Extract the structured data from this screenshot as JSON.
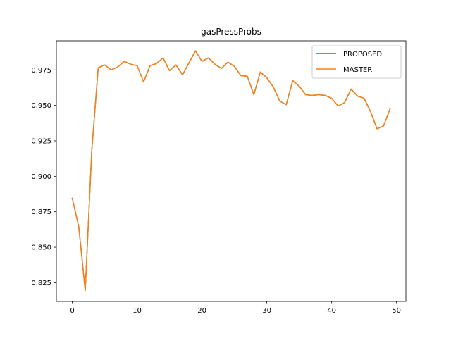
{
  "chart_data": {
    "type": "line",
    "title": "gasPressProbs",
    "xlabel": "",
    "ylabel": "",
    "xlim": [
      -2.45,
      51.45
    ],
    "ylim": [
      0.8118,
      0.9955
    ],
    "xticks": [
      0,
      10,
      20,
      30,
      40,
      50
    ],
    "yticks": [
      0.825,
      0.85,
      0.875,
      0.9,
      0.925,
      0.95,
      0.975
    ],
    "ytick_labels": [
      "0.825",
      "0.850",
      "0.875",
      "0.900",
      "0.925",
      "0.950",
      "0.975"
    ],
    "grid": false,
    "legend_position": "top-right",
    "x": [
      0,
      1,
      2,
      3,
      4,
      5,
      6,
      7,
      8,
      9,
      10,
      11,
      12,
      13,
      14,
      15,
      16,
      17,
      18,
      19,
      20,
      21,
      22,
      23,
      24,
      25,
      26,
      27,
      28,
      29,
      30,
      31,
      32,
      33,
      34,
      35,
      36,
      37,
      38,
      39,
      40,
      41,
      42,
      43,
      44,
      45,
      46,
      47,
      48,
      49
    ],
    "series": [
      {
        "name": "PROPOSED",
        "color": "#1f77b4",
        "values": [
          0.8845,
          0.8645,
          0.8195,
          0.9175,
          0.9765,
          0.9785,
          0.975,
          0.977,
          0.981,
          0.979,
          0.978,
          0.9665,
          0.978,
          0.9795,
          0.9835,
          0.9745,
          0.9785,
          0.9715,
          0.98,
          0.9885,
          0.981,
          0.9835,
          0.979,
          0.976,
          0.9805,
          0.9775,
          0.971,
          0.9705,
          0.9575,
          0.9735,
          0.9695,
          0.963,
          0.953,
          0.9505,
          0.9675,
          0.9635,
          0.9575,
          0.957,
          0.9575,
          0.957,
          0.955,
          0.9495,
          0.952,
          0.9615,
          0.9565,
          0.955,
          0.9455,
          0.9335,
          0.9355,
          0.9475
        ]
      },
      {
        "name": "MASTER",
        "color": "#ff7f0e",
        "values": [
          0.8845,
          0.8645,
          0.8195,
          0.9175,
          0.9765,
          0.9785,
          0.975,
          0.977,
          0.981,
          0.979,
          0.978,
          0.9665,
          0.978,
          0.9795,
          0.9835,
          0.9745,
          0.9785,
          0.9715,
          0.98,
          0.9885,
          0.981,
          0.9835,
          0.979,
          0.976,
          0.9805,
          0.9775,
          0.971,
          0.9705,
          0.9575,
          0.9735,
          0.9695,
          0.963,
          0.953,
          0.9505,
          0.9675,
          0.9635,
          0.9575,
          0.957,
          0.9575,
          0.957,
          0.955,
          0.9495,
          0.952,
          0.9615,
          0.9565,
          0.955,
          0.9455,
          0.9335,
          0.9355,
          0.9475
        ]
      }
    ]
  }
}
